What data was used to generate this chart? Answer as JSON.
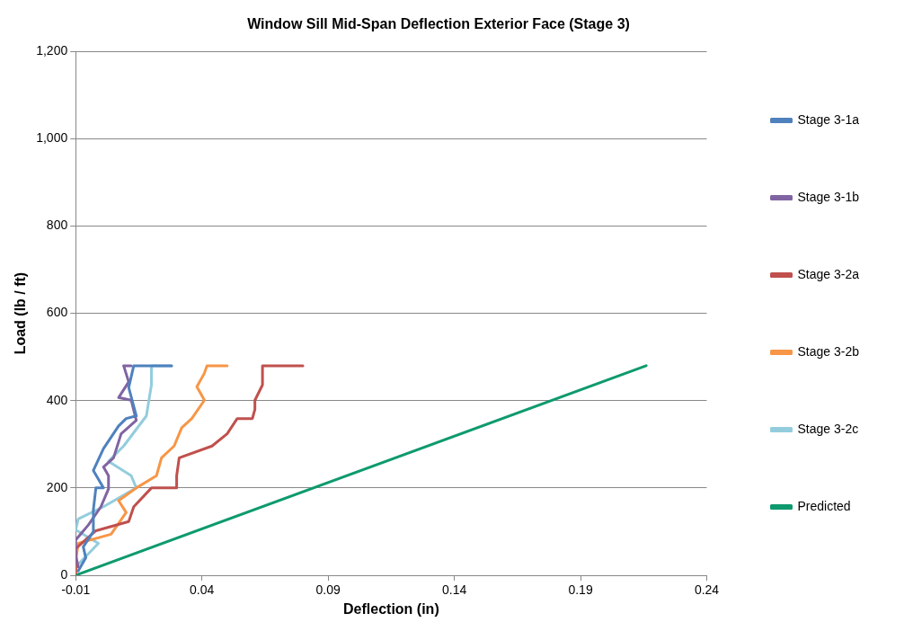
{
  "chart_data": {
    "type": "line",
    "title": "Window Sill Mid-Span Deflection Exterior Face (Stage 3)",
    "xlabel": "Deflection (in)",
    "ylabel": "Load (lb / ft)",
    "xlim": [
      -0.01,
      0.24
    ],
    "xticks": [
      -0.01,
      0.04,
      0.09,
      0.14,
      0.19,
      0.24
    ],
    "ylim": [
      0,
      1200
    ],
    "yticks": [
      0,
      200,
      400,
      600,
      800,
      {
        "value": 1000,
        "label": "1,000"
      },
      {
        "value": 1200,
        "label": "1,200"
      }
    ],
    "grid": "y",
    "legend": "right",
    "marker": "none",
    "line_style": "solid",
    "series": [
      {
        "name": "Stage 3-1a",
        "color": "#4f81bd",
        "x": [
          -0.009,
          -0.006,
          -0.007,
          -0.003,
          -0.003,
          -0.002,
          0.001,
          -0.003,
          0.001,
          0.007,
          0.01,
          0.014,
          0.011,
          0.013,
          0.028
        ],
        "values": [
          10,
          40,
          65,
          100,
          150,
          200,
          200,
          240,
          290,
          342,
          359,
          365,
          430,
          480,
          480
        ]
      },
      {
        "name": "Stage 3-1b",
        "color": "#8064a2",
        "x": [
          -0.009,
          -0.01,
          -0.01,
          -0.005,
          0,
          0.003,
          0.003,
          0.001,
          0.005,
          0.008,
          0.014,
          0.012,
          0.007,
          0.011,
          0.009,
          0.012
        ],
        "values": [
          19,
          46,
          81,
          115,
          157,
          198,
          228,
          248,
          269,
          324,
          355,
          401,
          407,
          443,
          480,
          480
        ]
      },
      {
        "name": "Stage 3-2a",
        "color": "#c0504d",
        "x": [
          -0.01,
          -0.01,
          -0.002,
          0.011,
          0.013,
          0.02,
          0.03,
          0.03,
          0.031,
          0.044,
          0.05,
          0.054,
          0.06,
          0.061,
          0.061,
          0.064,
          0.064,
          0.08
        ],
        "values": [
          4,
          61,
          102,
          123,
          157,
          200,
          200,
          228,
          269,
          296,
          324,
          359,
          359,
          380,
          401,
          436,
          480,
          480
        ]
      },
      {
        "name": "Stage 3-2b",
        "color": "#f79646",
        "x": [
          -0.01,
          -0.01,
          -0.009,
          0.004,
          0.01,
          0.007,
          0.014,
          0.022,
          0.024,
          0.029,
          0.032,
          0.036,
          0.041,
          0.038,
          0.041,
          0.042,
          0.05
        ],
        "values": [
          8,
          31,
          73,
          94,
          144,
          171,
          200,
          228,
          269,
          296,
          338,
          359,
          401,
          432,
          463,
          480,
          480
        ]
      },
      {
        "name": "Stage 3-2c",
        "color": "#93cddd",
        "x": [
          -0.01,
          -0.001,
          -0.01,
          -0.009,
          0.001,
          0.014,
          0.012,
          0.003,
          0.009,
          0.018,
          0.02,
          0.02,
          0.028
        ],
        "values": [
          19,
          73,
          104,
          129,
          157,
          200,
          228,
          261,
          296,
          365,
          436,
          480,
          480
        ]
      },
      {
        "name": "Predicted",
        "color": "#0e9a6e",
        "x": [
          -0.01,
          0.216
        ],
        "values": [
          0,
          480
        ]
      }
    ]
  }
}
